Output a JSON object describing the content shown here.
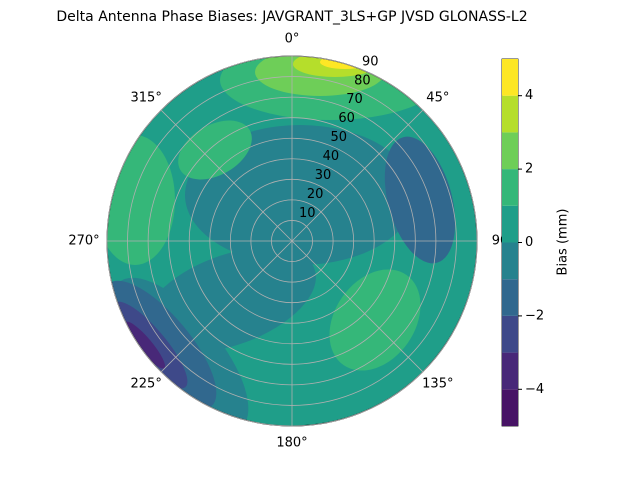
{
  "chart_data": {
    "type": "contourf",
    "projection": "polar",
    "title": "Delta Antenna Phase Biases: JAVGRANT_3LS+GP JVSD GLONASS-L2",
    "rlim": [
      0,
      90
    ],
    "rticks": [
      10,
      20,
      30,
      40,
      50,
      60,
      70,
      80,
      90
    ],
    "thetaticks": [
      {
        "value": 0,
        "label": "0°"
      },
      {
        "value": 45,
        "label": "45°"
      },
      {
        "value": 90,
        "label": "90"
      },
      {
        "value": 135,
        "label": "135°"
      },
      {
        "value": 180,
        "label": "180°"
      },
      {
        "value": 225,
        "label": "225°"
      },
      {
        "value": 270,
        "label": "270°"
      },
      {
        "value": 315,
        "label": "315°"
      }
    ],
    "grid": true,
    "colorbar": {
      "label": "Bias (mm)",
      "levels": [
        -5,
        -4,
        -3,
        -2,
        -1,
        0,
        1,
        2,
        3,
        4,
        5
      ],
      "ticks": [
        {
          "value": -4,
          "label": "−4"
        },
        {
          "value": -2,
          "label": "−2"
        },
        0,
        2,
        4
      ],
      "colors": [
        "#471365",
        "#482878",
        "#3e4989",
        "#31688e",
        "#26828e",
        "#1f9e89",
        "#35b779",
        "#6ece58",
        "#b5de2b",
        "#fde725"
      ]
    }
  }
}
